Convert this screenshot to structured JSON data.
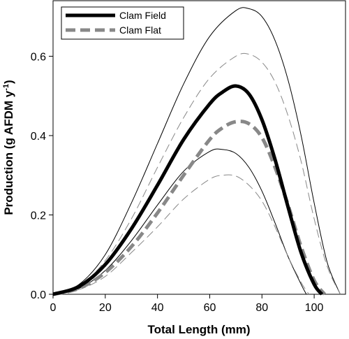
{
  "chart_data": {
    "type": "line",
    "xlabel": "Total Length (mm)",
    "ylabel": "Production (g AFDM y",
    "ylabel_superscript": "-1",
    "ylabel_suffix": ")",
    "xlim": [
      0,
      112
    ],
    "ylim": [
      0,
      0.74
    ],
    "xticks": [
      0,
      20,
      40,
      60,
      80,
      100
    ],
    "yticks": [
      0.0,
      0.2,
      0.4,
      0.6
    ],
    "ytick_labels": [
      "0.0",
      "0.2",
      "0.4",
      "0.6"
    ],
    "grid": false,
    "legend_position": "top-left",
    "series": [
      {
        "name": "Clam Field",
        "style": "solid",
        "color": "#000000",
        "weight": "thick",
        "in_legend": true,
        "x": [
          0,
          10,
          20,
          30,
          40,
          50,
          60,
          65,
          70,
          75,
          80,
          85,
          90,
          95,
          100,
          103
        ],
        "y": [
          0,
          0.02,
          0.075,
          0.165,
          0.275,
          0.39,
          0.48,
          0.51,
          0.525,
          0.505,
          0.44,
          0.34,
          0.22,
          0.105,
          0.025,
          0
        ]
      },
      {
        "name": "Clam Flat",
        "style": "dashed",
        "color": "#888888",
        "weight": "thick",
        "in_legend": true,
        "x": [
          0,
          10,
          20,
          30,
          40,
          50,
          60,
          65,
          70,
          75,
          80,
          85,
          90,
          95,
          100,
          104
        ],
        "y": [
          0,
          0.015,
          0.055,
          0.12,
          0.205,
          0.3,
          0.39,
          0.42,
          0.435,
          0.43,
          0.395,
          0.32,
          0.225,
          0.12,
          0.035,
          0
        ]
      },
      {
        "style": "solid",
        "color": "#000000",
        "weight": "thin",
        "in_legend": false,
        "x": [
          0,
          10,
          20,
          30,
          40,
          50,
          60,
          70,
          75,
          80,
          85,
          90,
          95,
          100,
          105,
          110
        ],
        "y": [
          0,
          0.025,
          0.1,
          0.23,
          0.38,
          0.53,
          0.65,
          0.715,
          0.72,
          0.7,
          0.64,
          0.54,
          0.4,
          0.23,
          0.08,
          0
        ]
      },
      {
        "style": "dashed",
        "color": "#888888",
        "weight": "thin",
        "in_legend": false,
        "x": [
          0,
          10,
          20,
          30,
          40,
          50,
          60,
          70,
          75,
          80,
          85,
          90,
          95,
          100,
          105,
          110
        ],
        "y": [
          0,
          0.02,
          0.085,
          0.19,
          0.32,
          0.445,
          0.545,
          0.6,
          0.605,
          0.585,
          0.535,
          0.45,
          0.335,
          0.19,
          0.07,
          0
        ]
      },
      {
        "style": "solid",
        "color": "#000000",
        "weight": "thin",
        "in_legend": false,
        "x": [
          0,
          10,
          20,
          30,
          40,
          50,
          60,
          65,
          70,
          75,
          80,
          85,
          90,
          95,
          97
        ],
        "y": [
          0,
          0.015,
          0.06,
          0.135,
          0.225,
          0.31,
          0.36,
          0.365,
          0.355,
          0.32,
          0.26,
          0.18,
          0.095,
          0.025,
          0
        ]
      },
      {
        "style": "dashed",
        "color": "#888888",
        "weight": "thin",
        "in_legend": false,
        "x": [
          0,
          10,
          20,
          30,
          40,
          50,
          60,
          65,
          70,
          75,
          80,
          85,
          90,
          95,
          98
        ],
        "y": [
          0,
          0.012,
          0.045,
          0.105,
          0.17,
          0.24,
          0.29,
          0.3,
          0.298,
          0.275,
          0.235,
          0.17,
          0.095,
          0.03,
          0
        ]
      }
    ]
  }
}
